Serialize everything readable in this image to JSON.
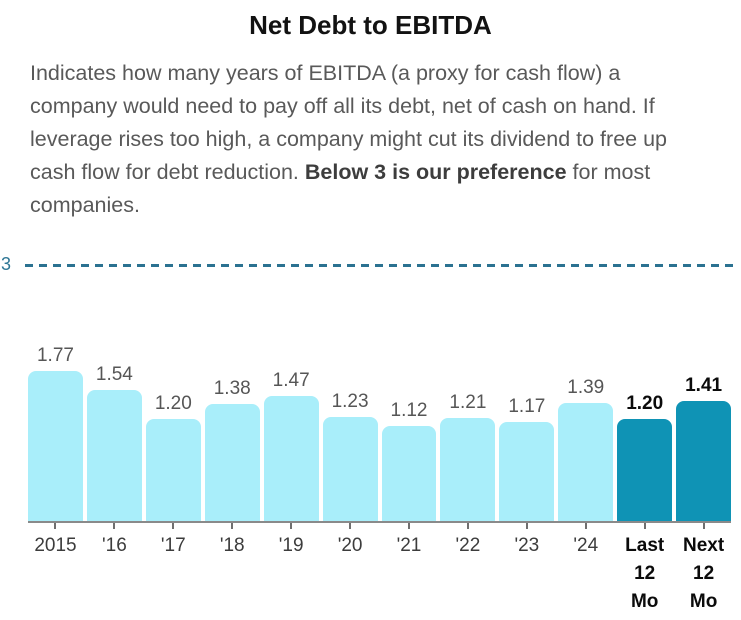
{
  "header": {
    "title": "Net Debt to EBITDA"
  },
  "description": {
    "segments": [
      {
        "text": "Indicates how many years of EBITDA (a proxy for cash flow) a company would need to pay off all its debt, net of cash on hand. If leverage rises too high, a company might cut its dividend to free up cash flow for debt reduction. ",
        "bold": false
      },
      {
        "text": "Below 3 is our preference",
        "bold": true
      },
      {
        "text": " for most companies.",
        "bold": false
      }
    ]
  },
  "chart_data": {
    "type": "bar",
    "title": "Net Debt to EBITDA",
    "categories": [
      "2015",
      "'16",
      "'17",
      "'18",
      "'19",
      "'20",
      "'21",
      "'22",
      "'23",
      "'24",
      "Last\n12\nMo",
      "Next\n12\nMo"
    ],
    "values": [
      1.77,
      1.54,
      1.2,
      1.38,
      1.47,
      1.23,
      1.12,
      1.21,
      1.17,
      1.39,
      1.2,
      1.41
    ],
    "highlighted": [
      false,
      false,
      false,
      false,
      false,
      false,
      false,
      false,
      false,
      false,
      true,
      true
    ],
    "threshold": {
      "value": 3,
      "label": "3"
    },
    "ylim": [
      0,
      3
    ],
    "grid": false,
    "legend": false,
    "colors": {
      "bar": "#a9eefa",
      "highlighted_bar": "#0f93b5",
      "threshold_line": "#2b7291",
      "threshold_label": "#2e7695",
      "axis": "#8a8a8a",
      "value_label": "#565656",
      "highlight_label": "#0b0b0b"
    }
  }
}
